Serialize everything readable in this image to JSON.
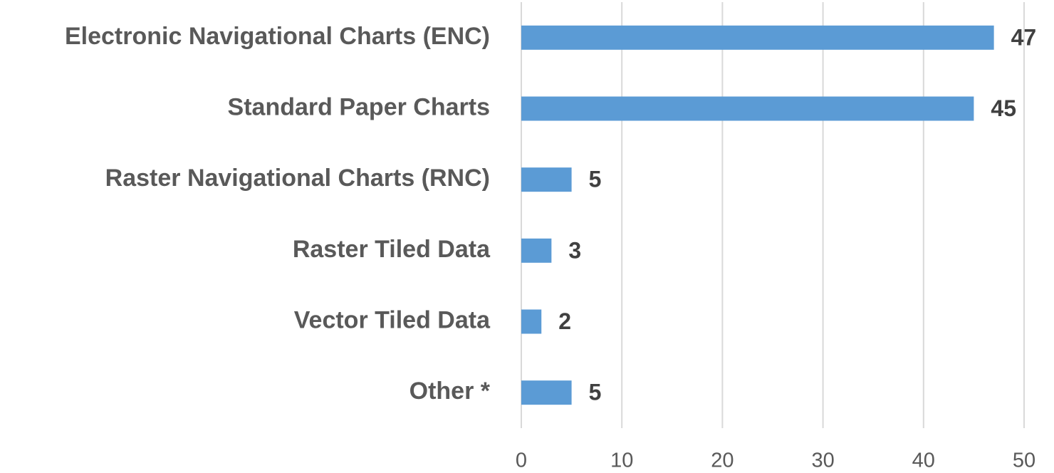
{
  "chart_data": {
    "type": "bar",
    "orientation": "horizontal",
    "categories": [
      "Electronic Navigational Charts (ENC)",
      "Standard Paper Charts",
      "Raster Navigational Charts (RNC)",
      "Raster Tiled Data",
      "Vector Tiled Data",
      "Other *"
    ],
    "values": [
      47,
      45,
      5,
      3,
      2,
      5
    ],
    "color": "#5b9bd5",
    "xlim": [
      0,
      50
    ],
    "xticks": [
      0,
      10,
      20,
      30,
      40,
      50
    ],
    "grid": true
  }
}
